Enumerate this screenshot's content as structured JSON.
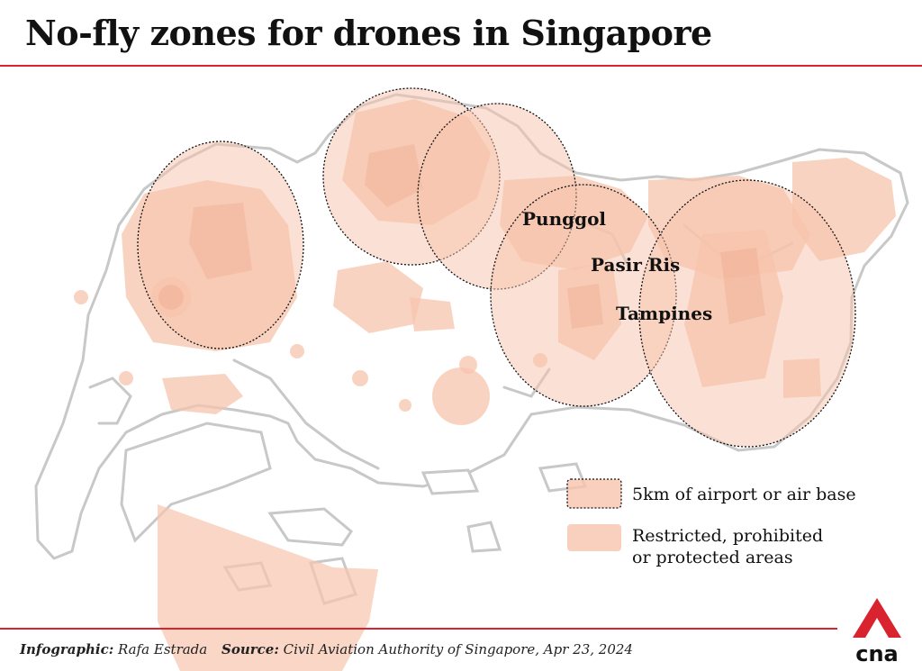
{
  "title": "No-fly zones for drones in Singapore",
  "places": {
    "punggol": "Punggol",
    "pasir_ris": "Pasir Ris",
    "tampines": "Tampines"
  },
  "legend": {
    "airport_zone": "5km of airport or air base",
    "restricted_line1": "Restricted, prohibited",
    "restricted_line2": "or protected areas"
  },
  "footer": {
    "infographic_label": "Infographic:",
    "infographic_value": "Rafa Estrada",
    "source_label": "Source:",
    "source_value": "Civil Aviation Authority of Singapore, Apr 23, 2024"
  },
  "logo_text": "cna",
  "colors": {
    "accent": "#d9232e",
    "zone_fill": "#f7c4ac",
    "zone_dark": "#ea9e82",
    "land_outline": "#c8c8c8",
    "text": "#111111"
  }
}
